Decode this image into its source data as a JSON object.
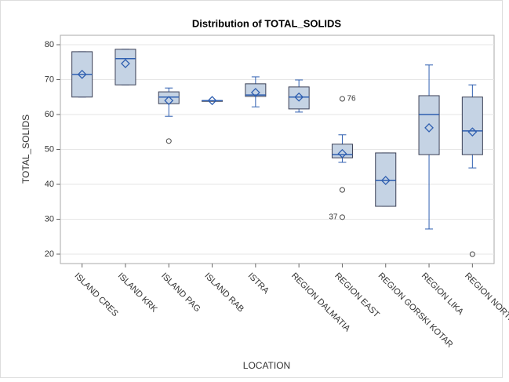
{
  "chart_data": {
    "type": "boxplot",
    "title": "Distribution of TOTAL_SOLIDS",
    "x_label": "LOCATION",
    "y_label": "TOTAL_SOLIDS",
    "categories": [
      "ISLAND CRES",
      "ISLAND KRK",
      "ISLAND PAG",
      "ISLAND RAB",
      "ISTRA",
      "REGION DALMATIA",
      "REGION EAST",
      "REGION GORSKI KOTAR",
      "REGION LIKA",
      "REGION NORTH"
    ],
    "min": [
      65,
      68.5,
      59.5,
      64,
      62.2,
      60.7,
      46.3,
      33.7,
      27.2,
      44.7
    ],
    "q1": [
      65,
      68.5,
      63.1,
      64,
      65.2,
      61.6,
      47.6,
      33.7,
      48.5,
      48.5
    ],
    "median": [
      71.5,
      76,
      65,
      64,
      65.6,
      65,
      48.5,
      41.1,
      60,
      55.3
    ],
    "q3": [
      78,
      78.7,
      66.5,
      64,
      68.8,
      67.9,
      51.5,
      49,
      65.4,
      65
    ],
    "max": [
      78,
      78.7,
      67.6,
      64,
      70.8,
      69.9,
      54.2,
      49,
      74.2,
      68.5
    ],
    "mean": [
      71.5,
      74.6,
      64,
      64,
      66.3,
      65,
      48.8,
      41.1,
      56.2,
      55
    ],
    "outliers": [
      [],
      [],
      [
        {
          "value": 52.4
        }
      ],
      [],
      [],
      [],
      [
        {
          "value": 64.5,
          "id": "76"
        },
        {
          "value": 38.4
        },
        {
          "value": 30.6,
          "id": "37"
        }
      ],
      [],
      [],
      [
        {
          "value": 20
        }
      ]
    ],
    "box_color": "#c5d3e4",
    "line_color": "#2f5fb0",
    "ylim": [
      17.3,
      82.7
    ],
    "yticks": [
      20,
      30,
      40,
      50,
      60,
      70,
      80
    ],
    "grid": true
  }
}
